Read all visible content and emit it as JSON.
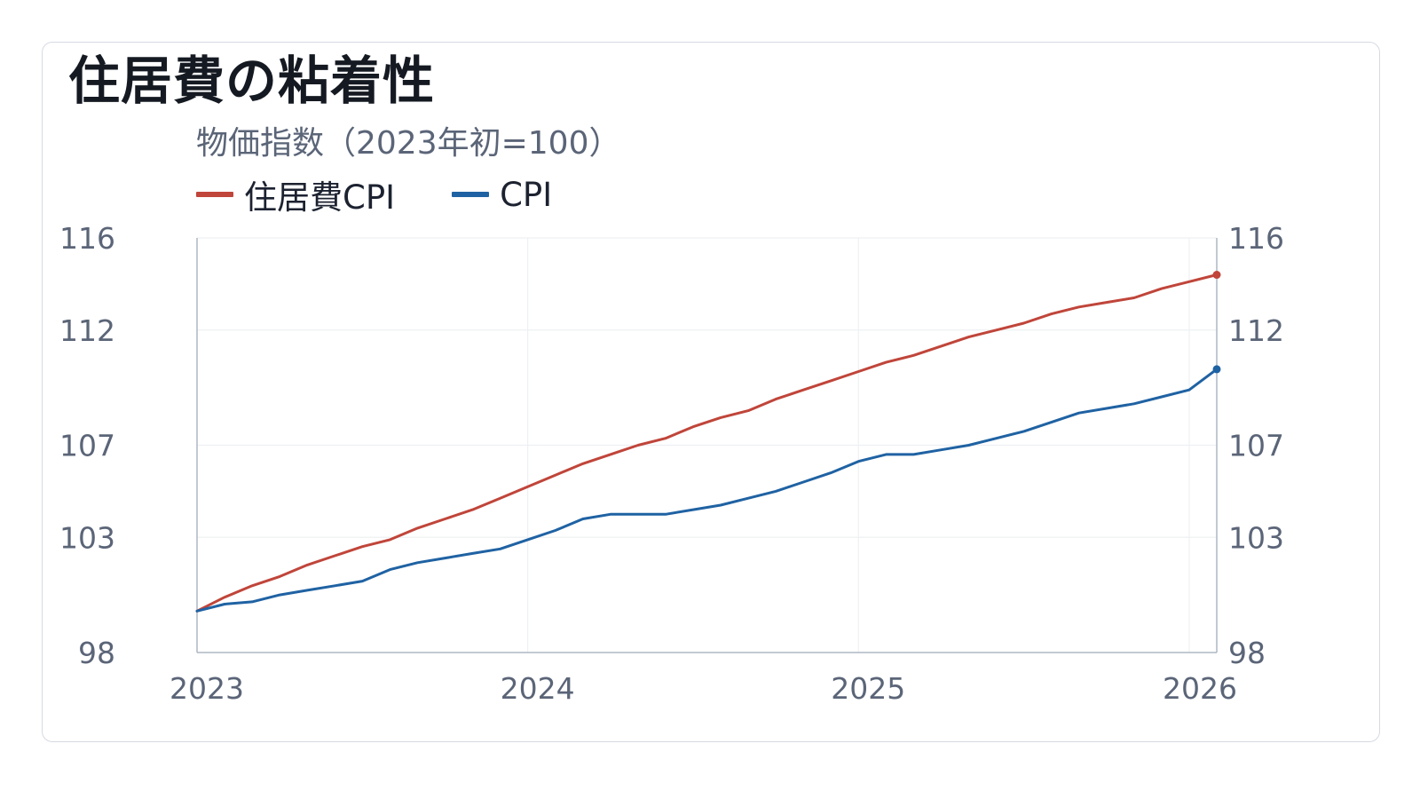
{
  "title": "住居費の粘着性",
  "chart_data": {
    "type": "line",
    "subtitle": "物価指数（2023年初=100）",
    "x_ticks": [
      "2023",
      "2024",
      "2025",
      "2026"
    ],
    "y_ticks_left": [
      "98",
      "103",
      "107",
      "112",
      "116"
    ],
    "y_ticks_right": [
      "98",
      "103",
      "107",
      "112",
      "116"
    ],
    "ylim": [
      98,
      116
    ],
    "xlim": [
      "2023-01",
      "2026-02"
    ],
    "grid": true,
    "legend_position": "top-left",
    "x": [
      "2023-01",
      "2023-02",
      "2023-03",
      "2023-04",
      "2023-05",
      "2023-06",
      "2023-07",
      "2023-08",
      "2023-09",
      "2023-10",
      "2023-11",
      "2023-12",
      "2024-01",
      "2024-02",
      "2024-03",
      "2024-04",
      "2024-05",
      "2024-06",
      "2024-07",
      "2024-08",
      "2024-09",
      "2024-10",
      "2024-11",
      "2024-12",
      "2025-01",
      "2025-02",
      "2025-03",
      "2025-04",
      "2025-05",
      "2025-06",
      "2025-07",
      "2025-08",
      "2025-09",
      "2025-10",
      "2025-11",
      "2025-12",
      "2026-01",
      "2026-02"
    ],
    "series": [
      {
        "name": "住居費CPI",
        "color": "#c0453a",
        "values": [
          99.8,
          100.4,
          100.9,
          101.3,
          101.8,
          102.2,
          102.6,
          102.9,
          103.4,
          103.8,
          104.2,
          104.7,
          105.2,
          105.7,
          106.2,
          106.6,
          107.0,
          107.3,
          107.8,
          108.2,
          108.5,
          109.0,
          109.4,
          109.8,
          110.2,
          110.6,
          110.9,
          111.3,
          111.7,
          112.0,
          112.3,
          112.7,
          113.0,
          113.2,
          113.4,
          113.8,
          114.1,
          114.4
        ]
      },
      {
        "name": "CPI",
        "color": "#1f62a3",
        "values": [
          99.8,
          100.1,
          100.2,
          100.5,
          100.7,
          100.9,
          101.1,
          101.6,
          101.9,
          102.1,
          102.3,
          102.5,
          102.9,
          103.3,
          103.8,
          104.0,
          104.0,
          104.0,
          104.2,
          104.4,
          104.7,
          105.0,
          105.4,
          105.8,
          106.3,
          106.6,
          106.6,
          106.8,
          107.0,
          107.3,
          107.6,
          108.0,
          108.4,
          108.6,
          108.8,
          109.1,
          109.4,
          110.3
        ]
      }
    ]
  }
}
